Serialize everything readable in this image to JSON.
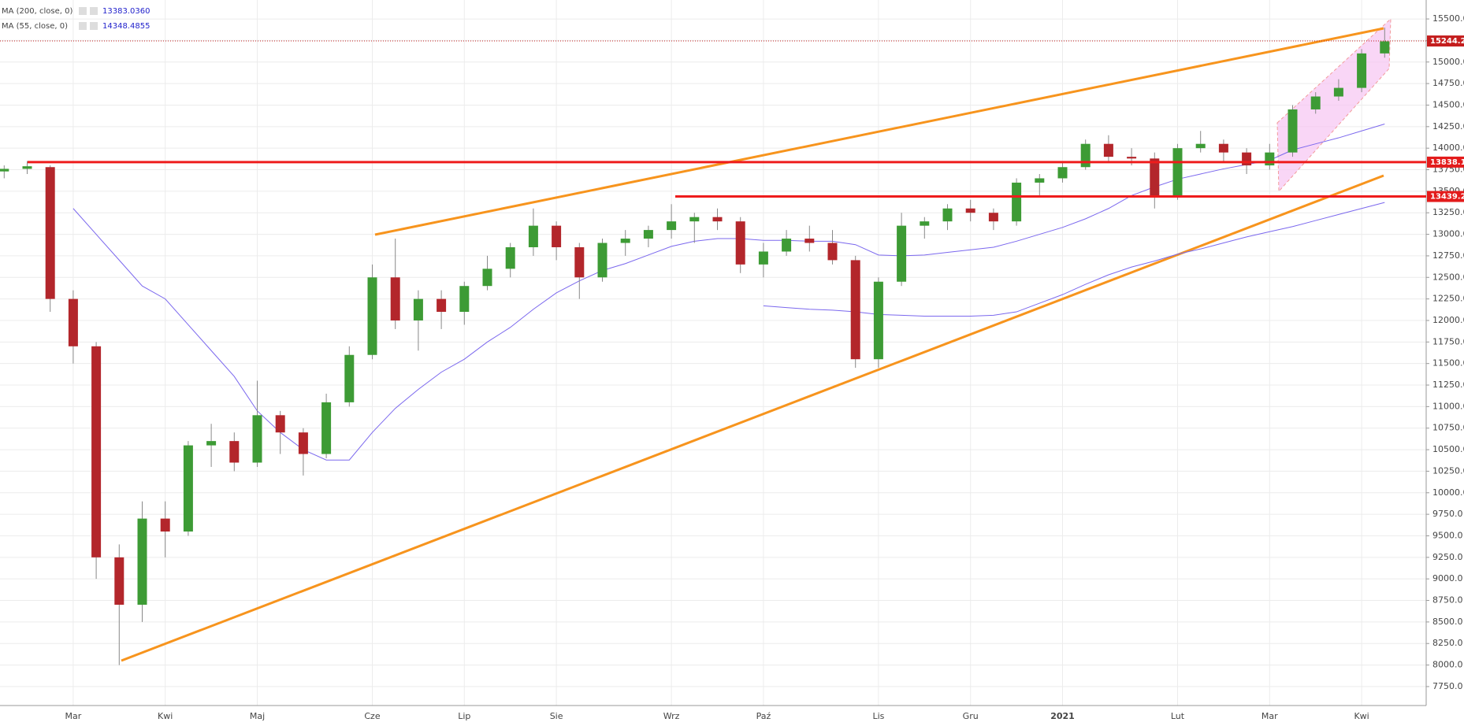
{
  "chart_data": {
    "type": "candlestick",
    "categories": [
      null,
      null,
      null,
      "Mar",
      null,
      null,
      null,
      "Kwi",
      null,
      null,
      null,
      "Maj",
      null,
      null,
      null,
      null,
      "Cze",
      null,
      null,
      null,
      "Lip",
      null,
      null,
      null,
      "Sie",
      null,
      null,
      null,
      null,
      "Wrz",
      null,
      null,
      null,
      "Paź",
      null,
      null,
      null,
      null,
      "Lis",
      null,
      null,
      null,
      "Gru",
      null,
      null,
      null,
      "2021",
      null,
      null,
      null,
      null,
      "Lut",
      null,
      null,
      null,
      "Mar",
      null,
      null,
      null,
      "Kwi",
      null
    ],
    "open": [
      13730,
      13760,
      13780,
      12250,
      11700,
      9250,
      8700,
      9700,
      9550,
      10550,
      10600,
      10350,
      10900,
      10700,
      10450,
      11050,
      11600,
      12500,
      12000,
      12250,
      12100,
      12400,
      12600,
      12850,
      13100,
      12850,
      12500,
      12900,
      12950,
      13050,
      13150,
      13200,
      13150,
      12650,
      12800,
      12950,
      12900,
      12700,
      11550,
      12450,
      13100,
      13150,
      13300,
      13250,
      13150,
      13600,
      13650,
      13780,
      14050,
      13900,
      13880,
      13450,
      14000,
      14050,
      13950,
      13800,
      13950,
      14450,
      14600,
      14700,
      15100
    ],
    "high": [
      13800,
      13850,
      13800,
      12350,
      11750,
      9400,
      9900,
      9900,
      10600,
      10800,
      10700,
      11300,
      10950,
      10750,
      11150,
      11700,
      12650,
      12950,
      12350,
      12350,
      12450,
      12750,
      12900,
      13300,
      13150,
      12900,
      12950,
      13050,
      13100,
      13350,
      13250,
      13300,
      13200,
      12900,
      13050,
      13100,
      13050,
      12750,
      12500,
      13250,
      13200,
      13350,
      13400,
      13300,
      13650,
      13700,
      13850,
      14100,
      14150,
      14000,
      13950,
      14050,
      14200,
      14100,
      14000,
      14050,
      14500,
      14650,
      14800,
      15150,
      15400
    ],
    "low": [
      13650,
      13700,
      12100,
      11500,
      9000,
      8000,
      8500,
      9250,
      9500,
      10300,
      10250,
      10300,
      10450,
      10200,
      10400,
      11000,
      11550,
      11900,
      11650,
      11900,
      11950,
      12350,
      12500,
      12750,
      12700,
      12250,
      12450,
      12750,
      12850,
      12950,
      12900,
      13050,
      12550,
      12500,
      12750,
      12800,
      12650,
      11450,
      11450,
      12400,
      12950,
      13050,
      13150,
      13050,
      13100,
      13450,
      13600,
      13750,
      13850,
      13800,
      13300,
      13400,
      13950,
      13850,
      13700,
      13750,
      13900,
      14400,
      14550,
      14650,
      15050
    ],
    "close": [
      13760,
      13790,
      12250,
      11700,
      9250,
      8700,
      9700,
      9550,
      10550,
      10600,
      10350,
      10900,
      10700,
      10450,
      11050,
      11600,
      12500,
      12000,
      12250,
      12100,
      12400,
      12600,
      12850,
      13100,
      12850,
      12500,
      12900,
      12950,
      13050,
      13150,
      13200,
      13150,
      12650,
      12800,
      12950,
      12900,
      12700,
      11550,
      12450,
      13100,
      13150,
      13300,
      13250,
      13150,
      13600,
      13650,
      13780,
      14050,
      13900,
      13880,
      13450,
      14000,
      14050,
      13950,
      13800,
      13950,
      14450,
      14600,
      14700,
      15100,
      15240
    ],
    "up_color": "#3d9b35",
    "down_color": "#b3262b",
    "series": [
      {
        "name": "MA (200, close, 0)",
        "color": "#7b68ee",
        "last": {
          "value": 13383.036,
          "label": "13383.0360"
        },
        "values": [
          null,
          null,
          null,
          null,
          null,
          null,
          null,
          null,
          null,
          null,
          null,
          null,
          null,
          null,
          null,
          null,
          null,
          null,
          null,
          null,
          null,
          null,
          null,
          null,
          null,
          null,
          null,
          null,
          null,
          null,
          null,
          null,
          null,
          12170,
          12150,
          12130,
          12120,
          12100,
          12070,
          12060,
          12050,
          12050,
          12050,
          12060,
          12100,
          12200,
          12300,
          12420,
          12530,
          12620,
          12690,
          12770,
          12830,
          12900,
          12970,
          13030,
          13090,
          13160,
          13230,
          13300,
          13370
        ]
      },
      {
        "name": "MA (55, close, 0)",
        "color": "#7b68ee",
        "last": {
          "value": 14348.4855,
          "label": "14348.4855"
        },
        "values": [
          null,
          null,
          null,
          13300,
          13000,
          12700,
          12400,
          12250,
          11950,
          11650,
          11350,
          10950,
          10700,
          10500,
          10380,
          10380,
          10700,
          10980,
          11200,
          11400,
          11550,
          11750,
          11920,
          12130,
          12320,
          12460,
          12580,
          12660,
          12760,
          12860,
          12920,
          12950,
          12950,
          12930,
          12930,
          12920,
          12920,
          12880,
          12760,
          12750,
          12760,
          12790,
          12820,
          12850,
          12920,
          13000,
          13080,
          13180,
          13300,
          13450,
          13550,
          13640,
          13700,
          13760,
          13810,
          13860,
          13980,
          14050,
          14120,
          14200,
          14280
        ]
      }
    ],
    "hlines": [
      {
        "value": 13838.1,
        "label": "13838.1"
      },
      {
        "value": 13439.2,
        "label": "13439.2"
      }
    ],
    "last_price": {
      "value": 15244.2,
      "label": "15244.2"
    },
    "ylim": [
      7530,
      15720
    ],
    "yticks": [
      {
        "value": 7750,
        "label": "7750.0"
      },
      {
        "value": 8000,
        "label": "8000.0"
      },
      {
        "value": 8250,
        "label": "8250.0"
      },
      {
        "value": 8500,
        "label": "8500.0"
      },
      {
        "value": 8750,
        "label": "8750.0"
      },
      {
        "value": 9000,
        "label": "9000.0"
      },
      {
        "value": 9250,
        "label": "9250.0"
      },
      {
        "value": 9500,
        "label": "9500.0"
      },
      {
        "value": 9750,
        "label": "9750.0"
      },
      {
        "value": 10000,
        "label": "10000.0"
      },
      {
        "value": 10250,
        "label": "10250.0"
      },
      {
        "value": 10500,
        "label": "10500.0"
      },
      {
        "value": 10750,
        "label": "10750.0"
      },
      {
        "value": 11000,
        "label": "11000.0"
      },
      {
        "value": 11250,
        "label": "11250.0"
      },
      {
        "value": 11500,
        "label": "11500.0"
      },
      {
        "value": 11750,
        "label": "11750.0"
      },
      {
        "value": 12000,
        "label": "12000.0"
      },
      {
        "value": 12250,
        "label": "12250.0"
      },
      {
        "value": 12500,
        "label": "12500.0"
      },
      {
        "value": 12750,
        "label": "12750.0"
      },
      {
        "value": 13000,
        "label": "13000.0"
      },
      {
        "value": 13250,
        "label": "13250.0"
      },
      {
        "value": 13500,
        "label": "13500.0"
      },
      {
        "value": 13750,
        "label": "13750.0"
      },
      {
        "value": 14000,
        "label": "14000.0"
      },
      {
        "value": 14250,
        "label": "14250.0"
      },
      {
        "value": 14500,
        "label": "14500.0"
      },
      {
        "value": 14750,
        "label": "14750.0"
      },
      {
        "value": 15000,
        "label": "15000.0"
      },
      {
        "value": 15250,
        "label": "15250.0"
      },
      {
        "value": 15500,
        "label": "15500.0"
      }
    ],
    "grid": true
  }
}
